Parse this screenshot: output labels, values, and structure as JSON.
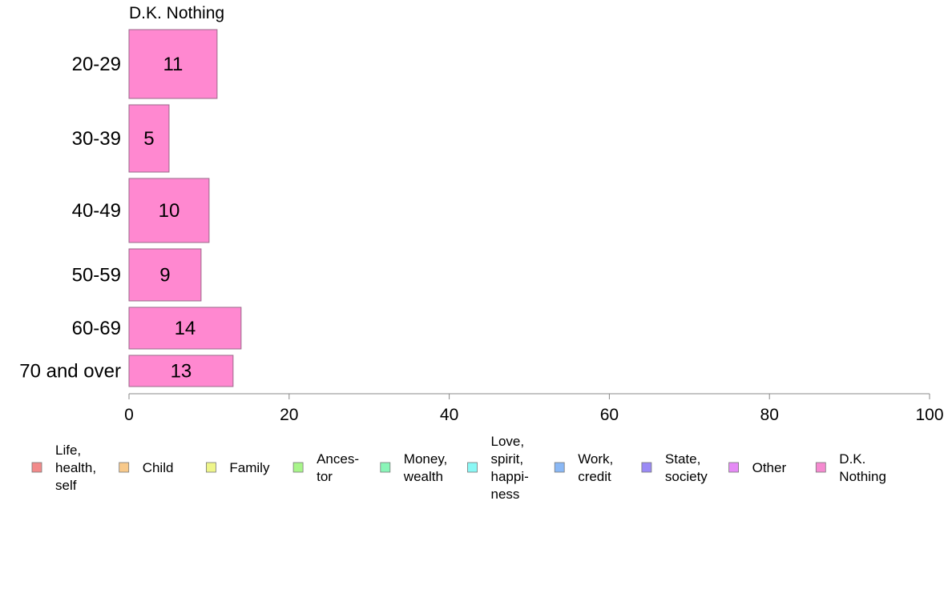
{
  "chart_data": {
    "type": "bar",
    "orientation": "horizontal",
    "title": "D.K. Nothing",
    "categories": [
      "20-29",
      "30-39",
      "40-49",
      "50-59",
      "60-69",
      "70 and over"
    ],
    "series": [
      {
        "name": "D.K. Nothing",
        "values": [
          11,
          5,
          10,
          9,
          14,
          13
        ]
      }
    ],
    "xlim": [
      0,
      100
    ],
    "xticks": [
      "0",
      "20",
      "40",
      "60",
      "80",
      "100"
    ],
    "xlabel": "",
    "ylabel": "",
    "grid": false,
    "legend": {
      "placement": "bottom",
      "items": [
        {
          "label_lines": [
            "Life,",
            "health,",
            "self"
          ],
          "color": "#f28a8a"
        },
        {
          "label_lines": [
            "Child"
          ],
          "color": "#f8c98a"
        },
        {
          "label_lines": [
            "Family"
          ],
          "color": "#eef58a"
        },
        {
          "label_lines": [
            "Ances-",
            "tor"
          ],
          "color": "#a8f58a"
        },
        {
          "label_lines": [
            "Money,",
            "wealth"
          ],
          "color": "#8af5b8"
        },
        {
          "label_lines": [
            "Love,",
            "spirit,",
            "happi-",
            "ness"
          ],
          "color": "#8af8f5"
        },
        {
          "label_lines": [
            "Work,",
            "credit"
          ],
          "color": "#8ab8f5"
        },
        {
          "label_lines": [
            "State,",
            "society"
          ],
          "color": "#9a8af5"
        },
        {
          "label_lines": [
            "Other"
          ],
          "color": "#e58af5"
        },
        {
          "label_lines": [
            "D.K.",
            "Nothing"
          ],
          "color": "#f58ad0"
        }
      ]
    },
    "bar_color": "#ff88d0",
    "bar_stroke": "#9a6a8a",
    "axis_color": "#888888"
  }
}
